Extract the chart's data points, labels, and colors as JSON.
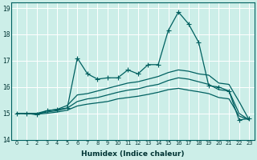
{
  "title": "",
  "xlabel": "Humidex (Indice chaleur)",
  "background_color": "#cceee8",
  "line_color": "#006060",
  "xlim": [
    -0.5,
    23.5
  ],
  "ylim": [
    14,
    19.2
  ],
  "yticks": [
    14,
    15,
    16,
    17,
    18,
    19
  ],
  "xticks": [
    0,
    1,
    2,
    3,
    4,
    5,
    6,
    7,
    8,
    9,
    10,
    11,
    12,
    13,
    14,
    15,
    16,
    17,
    18,
    19,
    20,
    21,
    22,
    23
  ],
  "series1_x": [
    0,
    1,
    2,
    3,
    4,
    5,
    6,
    7,
    8,
    9,
    10,
    11,
    12,
    13,
    14,
    15,
    16,
    17,
    18,
    19,
    20,
    21,
    22,
    23
  ],
  "series1_y": [
    15.0,
    15.0,
    14.95,
    15.1,
    15.15,
    15.2,
    17.1,
    16.5,
    16.3,
    16.35,
    16.35,
    16.65,
    16.5,
    16.85,
    16.85,
    18.15,
    18.85,
    18.4,
    17.7,
    16.05,
    16.0,
    15.85,
    14.75,
    14.8
  ],
  "series2_x": [
    0,
    2,
    3,
    4,
    5,
    6,
    7,
    8,
    9,
    10,
    11,
    12,
    13,
    14,
    15,
    16,
    17,
    18,
    19,
    20,
    21,
    22,
    23
  ],
  "series2_y": [
    15.0,
    15.0,
    15.1,
    15.15,
    15.3,
    15.7,
    15.75,
    15.85,
    15.95,
    16.05,
    16.15,
    16.2,
    16.3,
    16.4,
    16.55,
    16.65,
    16.6,
    16.5,
    16.45,
    16.15,
    16.1,
    15.45,
    14.75
  ],
  "series3_x": [
    0,
    2,
    3,
    4,
    5,
    6,
    7,
    8,
    9,
    10,
    11,
    12,
    13,
    14,
    15,
    16,
    17,
    18,
    19,
    20,
    21,
    22,
    23
  ],
  "series3_y": [
    15.0,
    14.98,
    15.05,
    15.1,
    15.2,
    15.45,
    15.55,
    15.6,
    15.7,
    15.8,
    15.88,
    15.93,
    16.03,
    16.1,
    16.25,
    16.35,
    16.3,
    16.2,
    16.1,
    15.9,
    15.85,
    15.0,
    14.75
  ],
  "series4_x": [
    0,
    2,
    3,
    4,
    5,
    6,
    7,
    8,
    9,
    10,
    11,
    12,
    13,
    14,
    15,
    16,
    17,
    18,
    19,
    20,
    21,
    22,
    23
  ],
  "series4_y": [
    15.0,
    14.97,
    15.0,
    15.05,
    15.12,
    15.28,
    15.35,
    15.4,
    15.45,
    15.55,
    15.6,
    15.65,
    15.72,
    15.8,
    15.9,
    15.95,
    15.88,
    15.82,
    15.75,
    15.6,
    15.55,
    14.9,
    14.75
  ]
}
